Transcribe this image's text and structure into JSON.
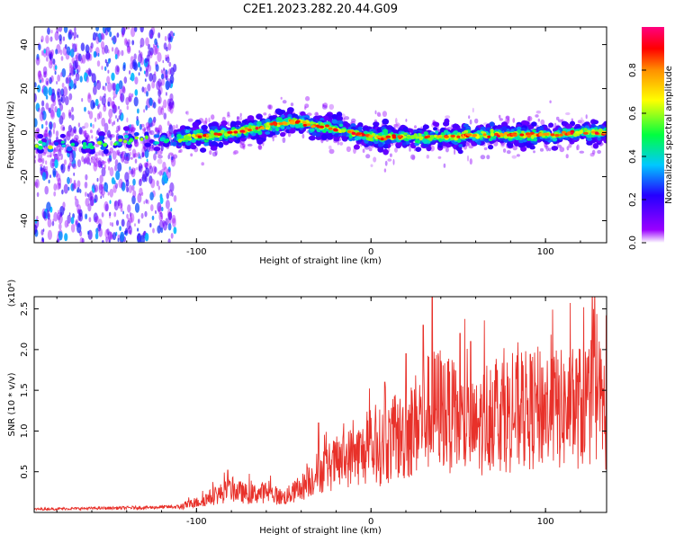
{
  "title": "C2E1.2023.282.20.44.G09",
  "colorbar": {
    "label": "Normalized spectral amplitude",
    "ticks": [
      0.0,
      0.2,
      0.4,
      0.6,
      0.8
    ],
    "tick_labels": [
      "0.0",
      "0.2",
      "0.4",
      "0.6",
      "0.8"
    ],
    "range": [
      0,
      1
    ],
    "colors": [
      "#ffffff",
      "#9a00ff",
      "#2400ff",
      "#00c8ff",
      "#00ff40",
      "#ffff00",
      "#ff9000",
      "#ff0000",
      "#ff0080"
    ]
  },
  "chart_data": [
    {
      "type": "heatmap",
      "xlabel": "Height of straight line (km)",
      "ylabel": "Frequency (Hz)",
      "xlim": [
        -193,
        135
      ],
      "ylim": [
        -50,
        48
      ],
      "xticks": [
        -100,
        0,
        100
      ],
      "xtick_labels": [
        "-100",
        "0",
        "100"
      ],
      "yticks": [
        -40,
        -20,
        0,
        20,
        40
      ],
      "ytick_labels": [
        "-40",
        "-20",
        "0",
        "20",
        "40"
      ],
      "noise_region_x": [
        -193,
        -112
      ],
      "ridge": {
        "x": [
          -193,
          -170,
          -150,
          -130,
          -112,
          -100,
          -80,
          -60,
          -45,
          -30,
          -15,
          0,
          20,
          40,
          60,
          80,
          100,
          120,
          135
        ],
        "y": [
          -6,
          -6,
          -5,
          -3,
          -3,
          -2,
          0,
          3,
          5,
          3,
          1,
          -2,
          -2,
          -2,
          -1,
          -1,
          -1,
          0,
          0
        ]
      }
    },
    {
      "type": "line",
      "xlabel": "Height of straight line (km)",
      "ylabel": "SNR (10 * v/v)",
      "y_multiplier": "(x10⁴)",
      "xlim": [
        -193,
        135
      ],
      "ylim": [
        0,
        2.65
      ],
      "xticks": [
        -100,
        0,
        100
      ],
      "xtick_labels": [
        "-100",
        "0",
        "100"
      ],
      "yticks": [
        0.5,
        1.0,
        1.5,
        2.0,
        2.5
      ],
      "ytick_labels": [
        "0.5",
        "1.0",
        "1.5",
        "2.0",
        "2.5"
      ],
      "color": "#e8312a",
      "series": [
        {
          "x": [
            -193,
            -160,
            -130,
            -110,
            -100,
            -90,
            -80,
            -70,
            -60,
            -50,
            -40,
            -30,
            -20,
            -10,
            0,
            10,
            20,
            30,
            40,
            50,
            60,
            70,
            80,
            90,
            100,
            110,
            120,
            130,
            135
          ],
          "y": [
            0.04,
            0.05,
            0.06,
            0.07,
            0.12,
            0.2,
            0.28,
            0.22,
            0.25,
            0.18,
            0.3,
            0.5,
            0.6,
            0.7,
            0.75,
            0.85,
            0.95,
            1.2,
            1.3,
            1.1,
            1.0,
            1.3,
            1.2,
            1.25,
            1.3,
            1.25,
            1.3,
            1.4,
            1.2
          ]
        }
      ],
      "peaks": [
        {
          "x": 35,
          "y": 2.65
        },
        {
          "x": 30,
          "y": 2.3
        },
        {
          "x": 51,
          "y": 2.2
        },
        {
          "x": 57,
          "y": 2.1
        },
        {
          "x": 20,
          "y": 1.95
        },
        {
          "x": 44,
          "y": 1.85
        },
        {
          "x": 8,
          "y": 1.6
        },
        {
          "x": -30,
          "y": 1.1
        },
        {
          "x": -82,
          "y": 0.52
        },
        {
          "x": 133,
          "y": 1.52
        }
      ]
    }
  ]
}
